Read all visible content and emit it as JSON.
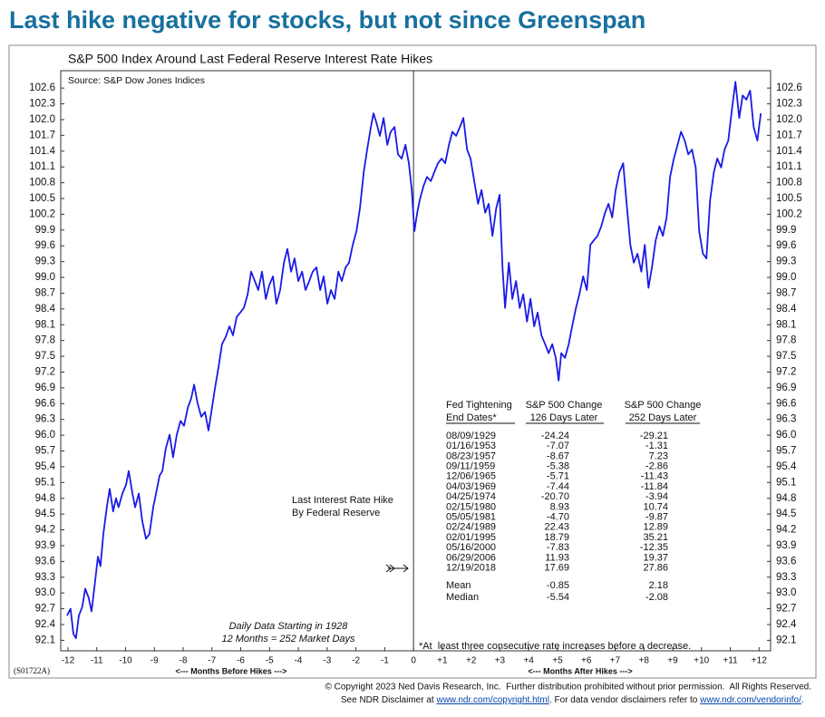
{
  "title": "Last hike negative for stocks, but not since Greenspan",
  "chart_data": {
    "type": "line",
    "title": "S&P 500 Index Around Last Federal Reserve Interest Rate Hikes",
    "source": "Source: S&P Dow Jones Indices",
    "hike_label": [
      "Last Interest Rate Hike",
      "By Federal Reserve"
    ],
    "data_note": [
      "Daily Data Starting in 1928",
      "12 Months = 252 Market Days"
    ],
    "x_label_before": "<--- Months Before Hikes --->",
    "x_label_after": "<--- Months After Hikes --->",
    "chart_code": "(S01722A)",
    "color": "#1a1ae6",
    "xlim": [
      -12.25,
      12.4
    ],
    "ylim": [
      91.9,
      102.93
    ],
    "xticks": [
      -12,
      -11,
      -10,
      -9,
      -8,
      -7,
      -6,
      -5,
      -4,
      -3,
      -2,
      -1,
      0,
      {
        "value": 1,
        "label": "+1"
      },
      {
        "value": 2,
        "label": "+2"
      },
      {
        "value": 3,
        "label": "+3"
      },
      {
        "value": 4,
        "label": "+4"
      },
      {
        "value": 5,
        "label": "+5"
      },
      {
        "value": 6,
        "label": "+6"
      },
      {
        "value": 7,
        "label": "+7"
      },
      {
        "value": 8,
        "label": "+8"
      },
      {
        "value": 9,
        "label": "+9"
      },
      {
        "value": 10,
        "label": "+10"
      },
      {
        "value": 11,
        "label": "+11"
      },
      {
        "value": 12,
        "label": "+12"
      }
    ],
    "yticks": [
      92.1,
      92.4,
      92.7,
      {
        "value": 93,
        "label": "93.0"
      },
      93.3,
      93.6,
      93.9,
      94.2,
      94.5,
      94.8,
      95.1,
      95.4,
      95.7,
      {
        "value": 96,
        "label": "96.0"
      },
      96.3,
      96.6,
      96.9,
      97.2,
      97.5,
      97.8,
      98.1,
      98.4,
      98.7,
      {
        "value": 99,
        "label": "99.0"
      },
      99.3,
      99.6,
      99.9,
      100.2,
      100.5,
      100.8,
      101.1,
      101.4,
      101.7,
      {
        "value": 102,
        "label": "102.0"
      },
      102.3,
      102.6
    ],
    "x": [
      -12.03,
      -11.91,
      -11.81,
      -11.72,
      -11.62,
      -11.5,
      -11.4,
      -11.28,
      -11.18,
      -11.05,
      -10.96,
      -10.87,
      -10.77,
      -10.65,
      -10.55,
      -10.43,
      -10.33,
      -10.24,
      -10.11,
      -9.98,
      -9.89,
      -9.76,
      -9.67,
      -9.54,
      -9.42,
      -9.29,
      -9.17,
      -9.04,
      -8.94,
      -8.82,
      -8.72,
      -8.6,
      -8.47,
      -8.35,
      -8.22,
      -8.09,
      -7.97,
      -7.84,
      -7.72,
      -7.62,
      -7.5,
      -7.37,
      -7.24,
      -7.12,
      -7.02,
      -6.9,
      -6.77,
      -6.65,
      -6.52,
      -6.39,
      -6.27,
      -6.14,
      -6.02,
      -5.89,
      -5.76,
      -5.64,
      -5.51,
      -5.39,
      -5.26,
      -5.13,
      -5.01,
      -4.88,
      -4.76,
      -4.63,
      -4.5,
      -4.38,
      -4.25,
      -4.13,
      -4,
      -3.87,
      -3.75,
      -3.62,
      -3.5,
      -3.37,
      -3.24,
      -3.12,
      -2.99,
      -2.87,
      -2.74,
      -2.61,
      -2.49,
      -2.36,
      -2.24,
      -2.11,
      -1.98,
      -1.86,
      -1.73,
      -1.61,
      -1.48,
      -1.39,
      -1.29,
      -1.17,
      -1.04,
      -0.91,
      -0.79,
      -0.66,
      -0.54,
      -0.41,
      -0.28,
      -0.16,
      -0.06,
      0.03,
      0.13,
      0.22,
      0.35,
      0.47,
      0.6,
      0.72,
      0.85,
      0.98,
      1.1,
      1.23,
      1.35,
      1.48,
      1.61,
      1.73,
      1.86,
      1.98,
      2.11,
      2.24,
      2.36,
      2.49,
      2.61,
      2.74,
      2.87,
      2.99,
      3.09,
      3.18,
      3.31,
      3.43,
      3.56,
      3.69,
      3.81,
      3.94,
      4.06,
      4.19,
      4.31,
      4.44,
      4.57,
      4.69,
      4.82,
      4.94,
      5.04,
      5.13,
      5.26,
      5.39,
      5.51,
      5.64,
      5.76,
      5.89,
      6.02,
      6.14,
      6.27,
      6.39,
      6.52,
      6.65,
      6.77,
      6.9,
      7.02,
      7.15,
      7.28,
      7.4,
      7.53,
      7.65,
      7.78,
      7.91,
      8.03,
      8.16,
      8.28,
      8.41,
      8.54,
      8.66,
      8.79,
      8.91,
      9.04,
      9.17,
      9.29,
      9.42,
      9.54,
      9.67,
      9.8,
      9.92,
      10.05,
      10.17,
      10.3,
      10.43,
      10.55,
      10.68,
      10.8,
      10.93,
      11.06,
      11.18,
      11.31,
      11.43,
      11.56,
      11.69,
      11.81,
      11.94,
      12.06
    ],
    "values": [
      92.57,
      92.7,
      92.22,
      92.14,
      92.57,
      92.74,
      93.08,
      92.91,
      92.65,
      93.25,
      93.69,
      93.51,
      94.12,
      94.63,
      94.98,
      94.55,
      94.8,
      94.63,
      94.89,
      95.06,
      95.32,
      94.89,
      94.63,
      94.89,
      94.37,
      94.03,
      94.12,
      94.63,
      94.89,
      95.23,
      95.32,
      95.75,
      96.01,
      95.58,
      96.01,
      96.27,
      96.18,
      96.52,
      96.7,
      96.96,
      96.61,
      96.35,
      96.44,
      96.09,
      96.44,
      96.87,
      97.3,
      97.73,
      97.87,
      98.07,
      97.9,
      98.25,
      98.33,
      98.42,
      98.68,
      99.11,
      98.93,
      98.76,
      99.11,
      98.59,
      98.85,
      99.02,
      98.5,
      98.76,
      99.28,
      99.54,
      99.11,
      99.36,
      98.93,
      99.11,
      98.76,
      98.93,
      99.11,
      99.19,
      98.76,
      99.02,
      98.5,
      98.76,
      98.59,
      99.11,
      98.93,
      99.19,
      99.28,
      99.62,
      99.88,
      100.31,
      101,
      101.43,
      101.86,
      102.12,
      101.95,
      101.69,
      102.03,
      101.52,
      101.77,
      101.86,
      101.34,
      101.26,
      101.52,
      101.17,
      100.66,
      99.88,
      100.23,
      100.48,
      100.74,
      100.91,
      100.83,
      101,
      101.17,
      101.26,
      101.17,
      101.52,
      101.77,
      101.69,
      101.86,
      102.03,
      101.43,
      101.26,
      100.83,
      100.4,
      100.66,
      100.23,
      100.4,
      99.79,
      100.31,
      100.57,
      99.19,
      98.42,
      99.28,
      98.59,
      98.93,
      98.42,
      98.68,
      98.16,
      98.59,
      98.07,
      98.33,
      97.9,
      97.73,
      97.56,
      97.73,
      97.47,
      97.04,
      97.56,
      97.47,
      97.73,
      98.07,
      98.42,
      98.68,
      99.02,
      98.76,
      99.62,
      99.71,
      99.79,
      99.97,
      100.23,
      100.4,
      100.14,
      100.66,
      101,
      101.17,
      100.4,
      99.62,
      99.28,
      99.45,
      99.11,
      99.62,
      98.8,
      99.19,
      99.71,
      99.97,
      99.79,
      100.14,
      100.91,
      101.26,
      101.52,
      101.77,
      101.6,
      101.34,
      101.43,
      101.09,
      99.88,
      99.45,
      99.36,
      100.48,
      101,
      101.26,
      101.09,
      101.43,
      101.6,
      102.2,
      102.72,
      102.03,
      102.46,
      102.38,
      102.55,
      101.86,
      101.6,
      102.12
    ]
  },
  "table": {
    "header": [
      [
        "Fed Tightening",
        "End Dates*"
      ],
      [
        "S&P 500 Change",
        "126 Days Later"
      ],
      [
        "S&P 500 Change",
        "252 Days Later"
      ]
    ],
    "rows": [
      [
        "08/09/1929",
        "-24.24",
        "-29.21"
      ],
      [
        "01/16/1953",
        "-7.07",
        "-1.31"
      ],
      [
        "08/23/1957",
        "-8.67",
        "7.23"
      ],
      [
        "09/11/1959",
        "-5.38",
        "-2.86"
      ],
      [
        "12/06/1965",
        "-5.71",
        "-11.43"
      ],
      [
        "04/03/1969",
        "-7.44",
        "-11.84"
      ],
      [
        "04/25/1974",
        "-20.70",
        "-3.94"
      ],
      [
        "02/15/1980",
        "8.93",
        "10.74"
      ],
      [
        "05/05/1981",
        "-4.70",
        "-9.87"
      ],
      [
        "02/24/1989",
        "22.43",
        "12.89"
      ],
      [
        "02/01/1995",
        "18.79",
        "35.21"
      ],
      [
        "05/16/2000",
        "-7.83",
        "-12.35"
      ],
      [
        "06/29/2006",
        "11.93",
        "19.37"
      ],
      [
        "12/19/2018",
        "17.69",
        "27.86"
      ]
    ],
    "summary": [
      [
        "Mean",
        "-0.85",
        "2.18"
      ],
      [
        "Median",
        "-5.54",
        "-2.08"
      ]
    ],
    "footnote": "*At  least three consecutive rate increases before a decrease."
  },
  "footer": {
    "copyright": "© Copyright 2023 Ned Davis Research, Inc.  Further distribution prohibited without prior permission.  All Rights Reserved.",
    "disclaimer": [
      "See NDR Disclaimer at ",
      "www.ndr.com/copyright.html",
      ". For data vendor disclaimers refer to ",
      "www.ndr.com/vendorinfo/",
      "."
    ]
  }
}
